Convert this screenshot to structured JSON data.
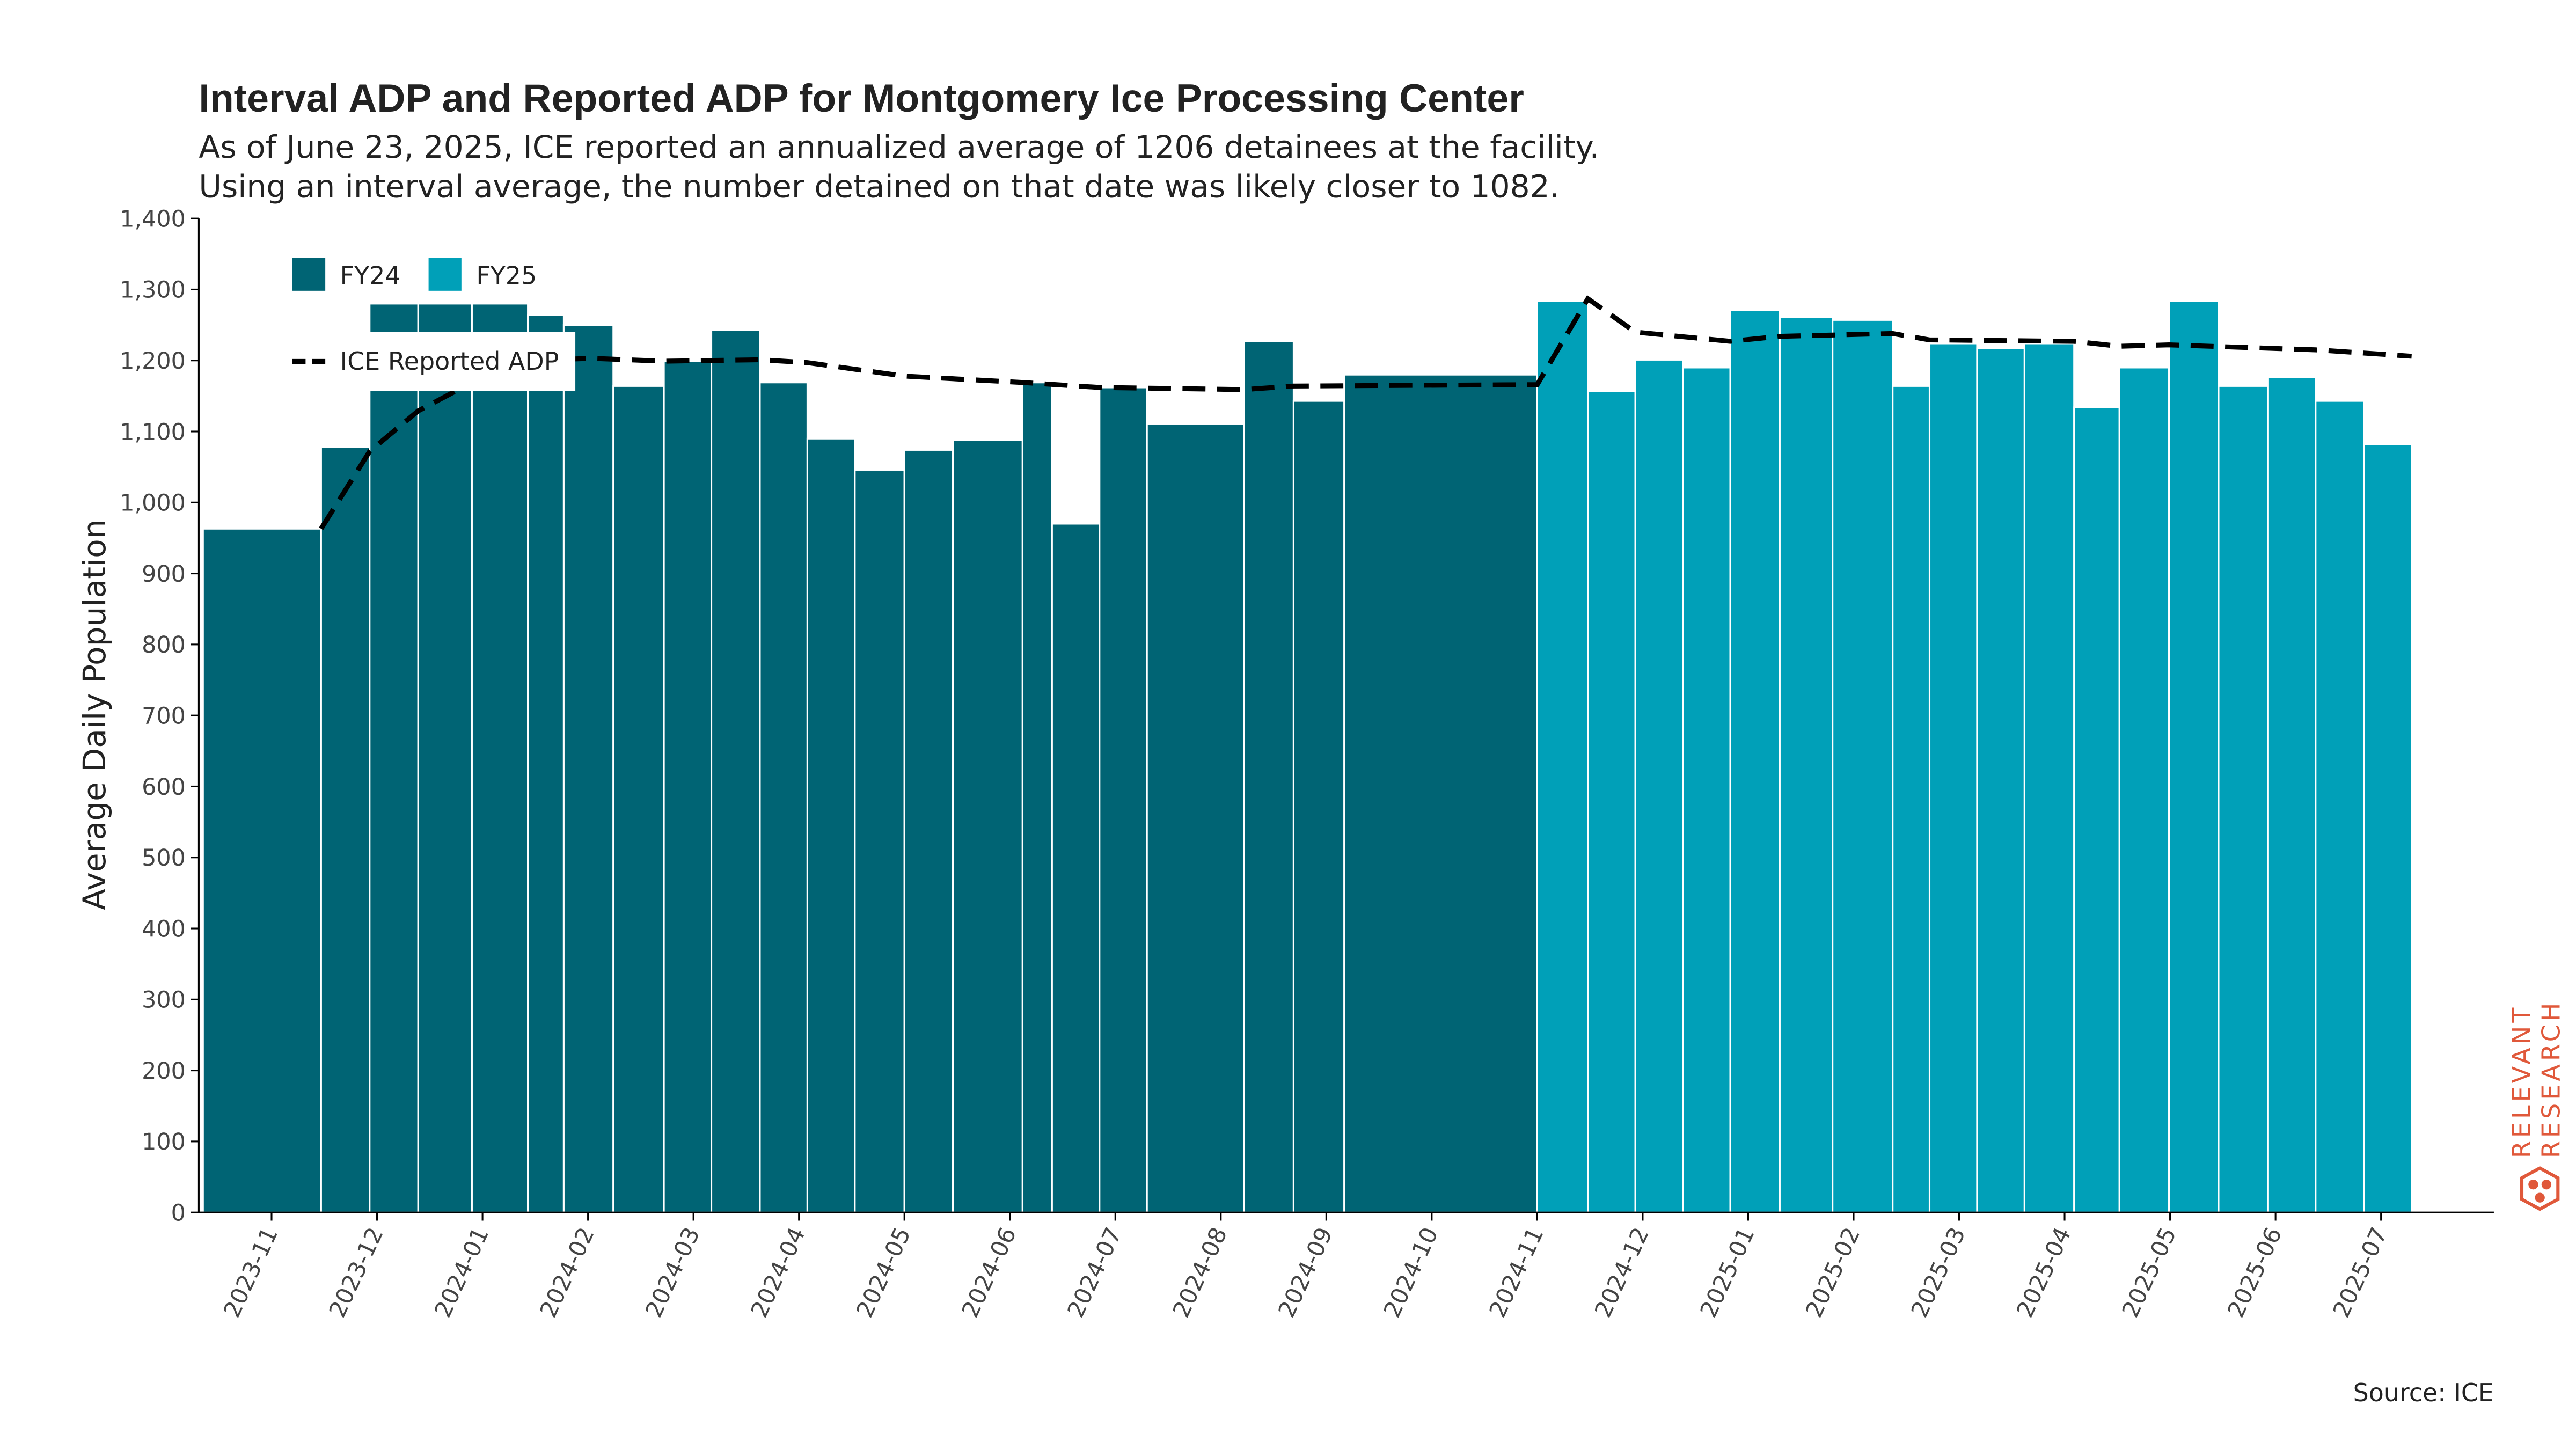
{
  "chart_data": {
    "type": "bar",
    "title": "Interval ADP and Reported ADP for Montgomery Ice Processing Center",
    "subtitle": [
      "As of June 23, 2025, ICE reported an annualized average of 1206 detainees at the facility.",
      "Using an interval average, the number detained on that date was likely closer to 1082."
    ],
    "y_label": "Average Daily Population",
    "source": "Source: ICE",
    "branding": [
      "RELEVANT",
      "RESEARCH"
    ],
    "legend": "upper left",
    "xlim": [
      -0.69,
      21.07
    ],
    "xticks": [
      {
        "value": 0,
        "label": "2023-11"
      },
      {
        "value": 1,
        "label": "2023-12"
      },
      {
        "value": 2,
        "label": "2024-01"
      },
      {
        "value": 3,
        "label": "2024-02"
      },
      {
        "value": 4,
        "label": "2024-03"
      },
      {
        "value": 5,
        "label": "2024-04"
      },
      {
        "value": 6,
        "label": "2024-05"
      },
      {
        "value": 7,
        "label": "2024-06"
      },
      {
        "value": 8,
        "label": "2024-07"
      },
      {
        "value": 9,
        "label": "2024-08"
      },
      {
        "value": 10,
        "label": "2024-09"
      },
      {
        "value": 11,
        "label": "2024-10"
      },
      {
        "value": 12,
        "label": "2024-11"
      },
      {
        "value": 13,
        "label": "2024-12"
      },
      {
        "value": 14,
        "label": "2025-01"
      },
      {
        "value": 15,
        "label": "2025-02"
      },
      {
        "value": 16,
        "label": "2025-03"
      },
      {
        "value": 17,
        "label": "2025-04"
      },
      {
        "value": 18,
        "label": "2025-05"
      },
      {
        "value": 19,
        "label": "2025-06"
      },
      {
        "value": 20,
        "label": "2025-07"
      }
    ],
    "ylim": [
      0,
      1400
    ],
    "yticks": [
      0,
      100,
      200,
      300,
      400,
      500,
      600,
      700,
      800,
      900,
      {
        "value": 1000,
        "label": "1,000"
      },
      {
        "value": 1100,
        "label": "1,100"
      },
      {
        "value": 1200,
        "label": "1,200"
      },
      {
        "value": 1300,
        "label": "1,300"
      },
      {
        "value": 1400,
        "label": "1,400"
      }
    ],
    "series": [
      {
        "name": "FY24",
        "type": "bar",
        "color": "#006474",
        "bins": [
          -0.65,
          0.47,
          0.93,
          1.39,
          1.9,
          2.43,
          2.77,
          3.24,
          3.72,
          4.17,
          4.63,
          5.08,
          5.53,
          6.0,
          6.46,
          7.12,
          7.4,
          7.85,
          8.3,
          9.22,
          9.69,
          10.17,
          12.0
        ],
        "values": [
          963,
          1078,
          1280,
          1280,
          1280,
          1264,
          1250,
          1164,
          1199,
          1243,
          1169,
          1090,
          1046,
          1074,
          1088,
          1169,
          970,
          1162,
          1111,
          1227,
          1143,
          1180
        ]
      },
      {
        "name": "FY25",
        "type": "bar",
        "color": "#00a0b8",
        "bins": [
          12.0,
          12.48,
          12.93,
          13.38,
          13.83,
          14.3,
          14.8,
          15.37,
          15.72,
          16.17,
          16.62,
          17.09,
          17.52,
          17.99,
          18.46,
          18.93,
          19.38,
          19.84,
          20.29
        ],
        "values": [
          1284,
          1157,
          1201,
          1190,
          1271,
          1261,
          1257,
          1164,
          1224,
          1217,
          1224,
          1134,
          1190,
          1284,
          1164,
          1176,
          1143,
          1082
        ]
      },
      {
        "name": "ICE Reported ADP",
        "type": "line",
        "color": "#000000",
        "dashed": true,
        "x": [
          0.47,
          0.93,
          1.39,
          1.9,
          2.43,
          3.04,
          3.72,
          4.63,
          5.08,
          6.0,
          7.12,
          7.85,
          9.22,
          9.69,
          12.0,
          12.48,
          12.93,
          13.83,
          14.3,
          15.37,
          15.72,
          17.09,
          17.52,
          17.99,
          19.38,
          20.29
        ],
        "values": [
          963,
          1072,
          1129,
          1169,
          1200,
          1203,
          1199,
          1201,
          1197,
          1178,
          1169,
          1162,
          1159,
          1164,
          1166,
          1287,
          1240,
          1227,
          1234,
          1238,
          1229,
          1227,
          1220,
          1222,
          1215,
          1206
        ]
      }
    ]
  }
}
